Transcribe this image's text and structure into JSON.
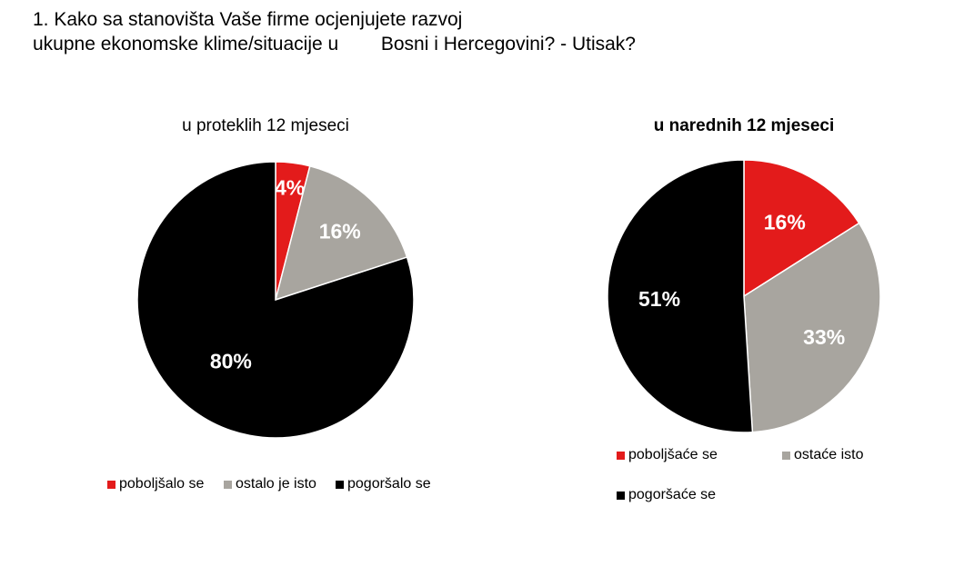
{
  "title": {
    "line1": "1. Kako sa stanovišta Vaše firme ocjenjujete razvoj",
    "line2": "ukupne ekonomske klime/situacije u        Bosni i Hercegovini? - Utisak?"
  },
  "colors": {
    "red": "#e31b1b",
    "gray": "#a8a59f",
    "black": "#000000"
  },
  "chart_data": [
    {
      "type": "pie",
      "title": "u proteklih 12 mjeseci",
      "legend_placement": "bottom",
      "categories": [
        "poboljšalo se",
        "ostalo je isto",
        "pogoršalo se"
      ],
      "values": [
        4,
        16,
        80
      ],
      "labels": [
        "4%",
        "16%",
        "80%"
      ]
    },
    {
      "type": "pie",
      "title": "u narednih 12 mjeseci",
      "legend_placement": "bottom",
      "categories": [
        "poboljšaće se",
        "ostaće isto",
        "pogoršaće se"
      ],
      "values": [
        16,
        33,
        51
      ],
      "labels": [
        "16%",
        "33%",
        "51%"
      ]
    }
  ]
}
